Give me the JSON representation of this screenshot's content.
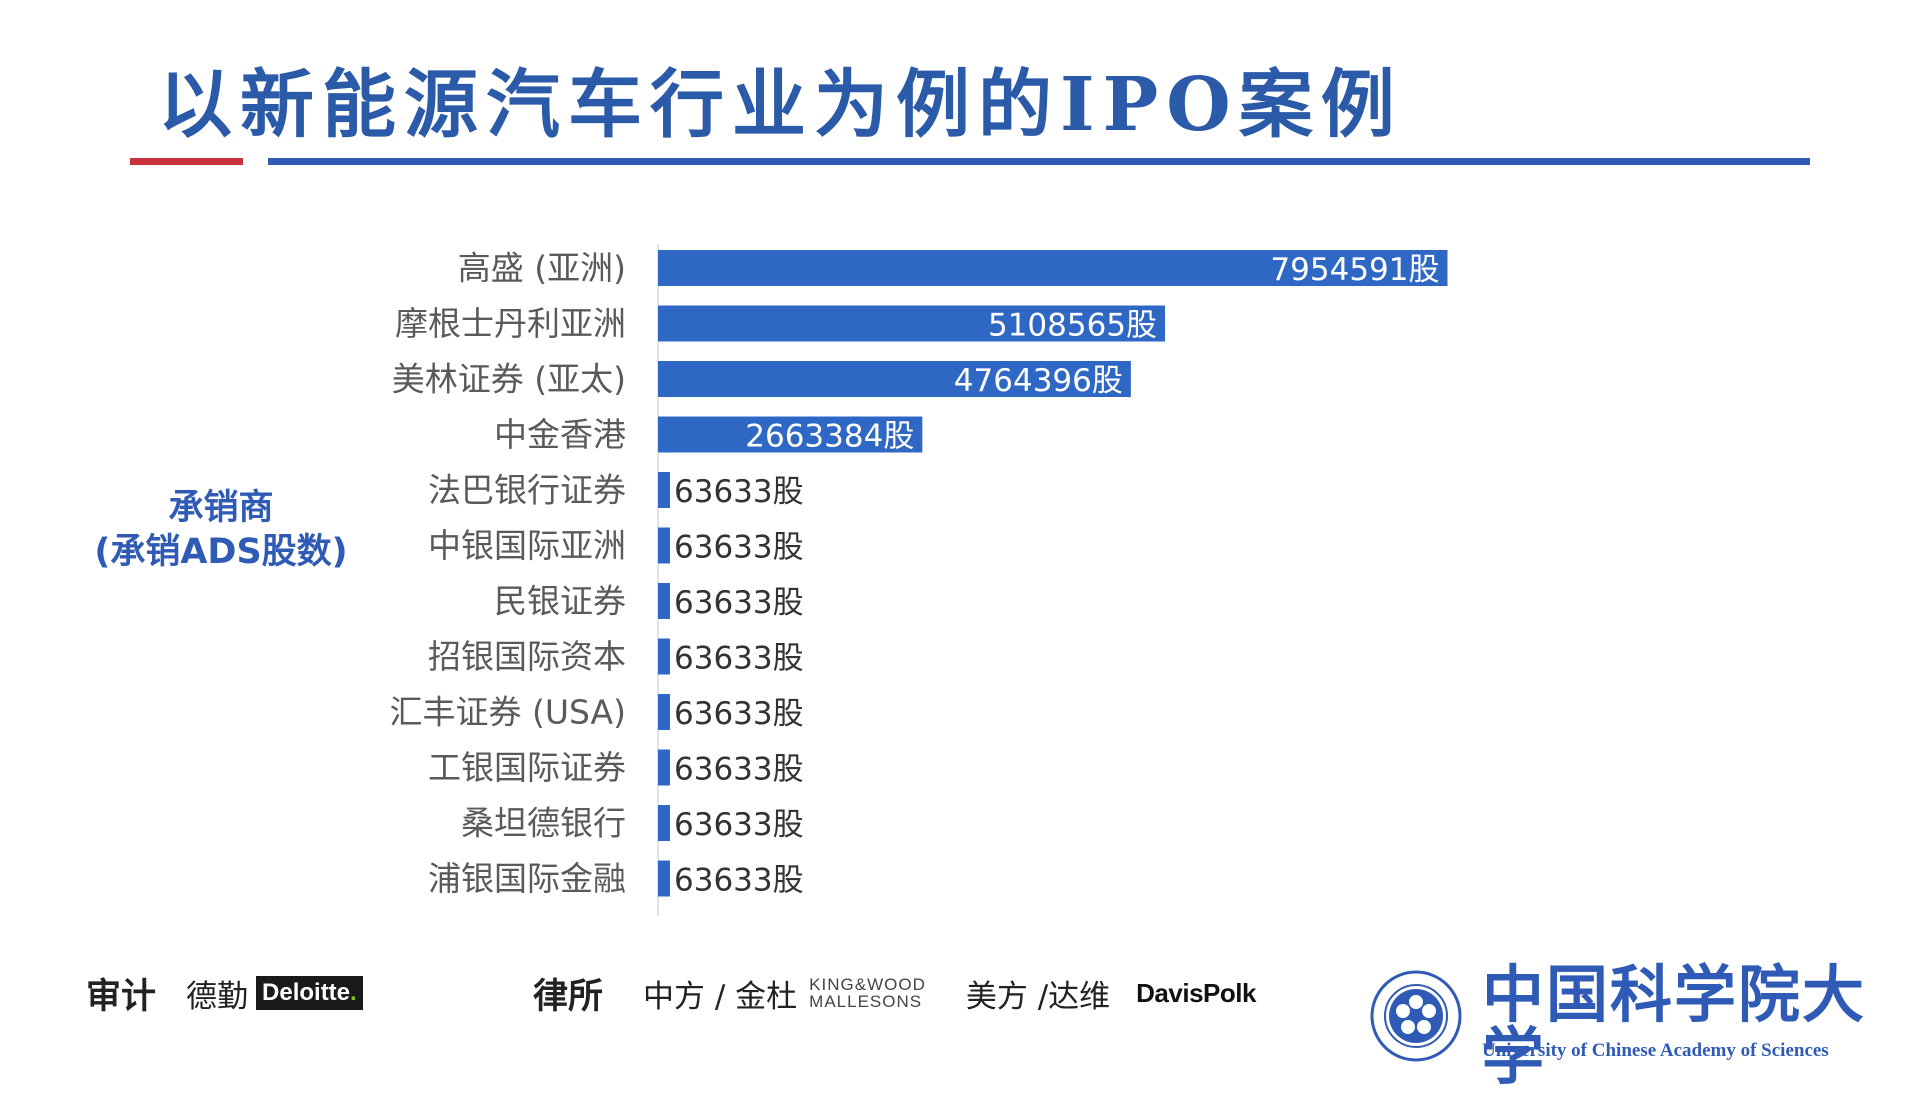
{
  "title": "以新能源汽车行业为例的IPO案例",
  "side_label": {
    "line1": "承销商",
    "line2": "(承销ADS股数)"
  },
  "chart_data": {
    "type": "bar",
    "orientation": "horizontal",
    "categories": [
      "高盛 (亚洲)",
      "摩根士丹利亚洲",
      "美林证券 (亚太)",
      "中金香港",
      "法巴银行证券",
      "中银国际亚洲",
      "民银证券",
      "招银国际资本",
      "汇丰证券 (USA)",
      "工银国际证券",
      "桑坦德银行",
      "浦银国际金融"
    ],
    "values": [
      7954591,
      5108565,
      4764396,
      2663384,
      63633,
      63633,
      63633,
      63633,
      63633,
      63633,
      63633,
      63633
    ],
    "value_labels": [
      "7954591股",
      "5108565股",
      "4764396股",
      "2663384股",
      "63633股",
      "63633股",
      "63633股",
      "63633股",
      "63633股",
      "63633股",
      "63633股",
      "63633股"
    ],
    "xlim": [
      0,
      8000000
    ],
    "bar_color": "#2f68c4",
    "grid": false,
    "legend": "none"
  },
  "footer": {
    "audit_heading": "审计",
    "audit_firm": "德勤",
    "audit_logo": "Deloitte",
    "law_heading": "律所",
    "law_firm_cn": "中方 / 金杜",
    "law_logo_line1": "KING&WOOD",
    "law_logo_line2": "MALLESONS",
    "law_firm_us": "美方 /达维",
    "law_logo_us": "DavisPolk"
  },
  "university": {
    "name_cn": "中国科学院大学",
    "name_en": "University of  Chinese Academy of Sciences",
    "seal_icon": "ucas-seal-icon"
  },
  "colors": {
    "title": "#2a5aa8",
    "accent_blue": "#2f5bb6",
    "accent_red": "#c8323c",
    "bar": "#2f68c4"
  }
}
